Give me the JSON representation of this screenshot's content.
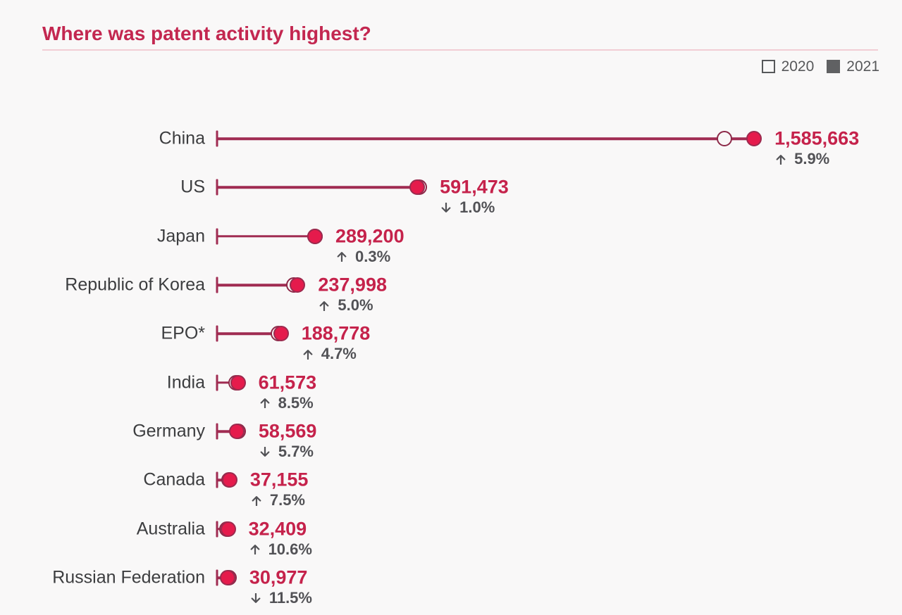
{
  "chart_data": {
    "type": "dumbbell",
    "title": "Where was patent activity highest?",
    "xlabel": "",
    "ylabel": "",
    "x_range": [
      0,
      1650000
    ],
    "grid": false,
    "legend_position": "top-right",
    "legend": [
      {
        "label": "2020",
        "style": "hollow"
      },
      {
        "label": "2021",
        "style": "filled"
      }
    ],
    "rows": [
      {
        "label": "China",
        "value_2021": 1585663,
        "value_2021_label": "1,585,663",
        "value_2020_est": 1497321,
        "change_direction": "up",
        "change_pct": 5.9,
        "change_label": "5.9%"
      },
      {
        "label": "US",
        "value_2021": 591473,
        "value_2021_label": "591,473",
        "value_2020_est": 597447,
        "change_direction": "down",
        "change_pct": 1.0,
        "change_label": "1.0%"
      },
      {
        "label": "Japan",
        "value_2021": 289200,
        "value_2021_label": "289,200",
        "value_2020_est": 288335,
        "change_direction": "up",
        "change_pct": 0.3,
        "change_label": "0.3%"
      },
      {
        "label": "Republic of Korea",
        "value_2021": 237998,
        "value_2021_label": "237,998",
        "value_2020_est": 226665,
        "change_direction": "up",
        "change_pct": 5.0,
        "change_label": "5.0%"
      },
      {
        "label": "EPO*",
        "value_2021": 188778,
        "value_2021_label": "188,778",
        "value_2020_est": 180304,
        "change_direction": "up",
        "change_pct": 4.7,
        "change_label": "4.7%"
      },
      {
        "label": "India",
        "value_2021": 61573,
        "value_2021_label": "61,573",
        "value_2020_est": 56749,
        "change_direction": "up",
        "change_pct": 8.5,
        "change_label": "8.5%"
      },
      {
        "label": "Germany",
        "value_2021": 58569,
        "value_2021_label": "58,569",
        "value_2020_est": 62109,
        "change_direction": "down",
        "change_pct": 5.7,
        "change_label": "5.7%"
      },
      {
        "label": "Canada",
        "value_2021": 37155,
        "value_2021_label": "37,155",
        "value_2020_est": 34563,
        "change_direction": "up",
        "change_pct": 7.5,
        "change_label": "7.5%"
      },
      {
        "label": "Australia",
        "value_2021": 32409,
        "value_2021_label": "32,409",
        "value_2020_est": 29303,
        "change_direction": "up",
        "change_pct": 10.6,
        "change_label": "10.6%"
      },
      {
        "label": "Russian Federation",
        "value_2021": 30977,
        "value_2021_label": "30,977",
        "value_2020_est": 35002,
        "change_direction": "down",
        "change_pct": 11.5,
        "change_label": "11.5%"
      }
    ],
    "colors": {
      "background": "#f9f8f8",
      "title": "#c32750",
      "divider": "#f2cdd5",
      "row_label": "#3c3d3f",
      "value_label": "#c5224b",
      "change_label": "#525256",
      "legend_text": "#57585a",
      "legend_square": "#606163",
      "connector_line": "#a02c52",
      "dot_2021_fill": "#e51b4c",
      "dot_2021_stroke": "#9c2a4e",
      "dot_2020_stroke": "#8c2948",
      "dot_2020_fill": "#f9f8f8"
    }
  }
}
